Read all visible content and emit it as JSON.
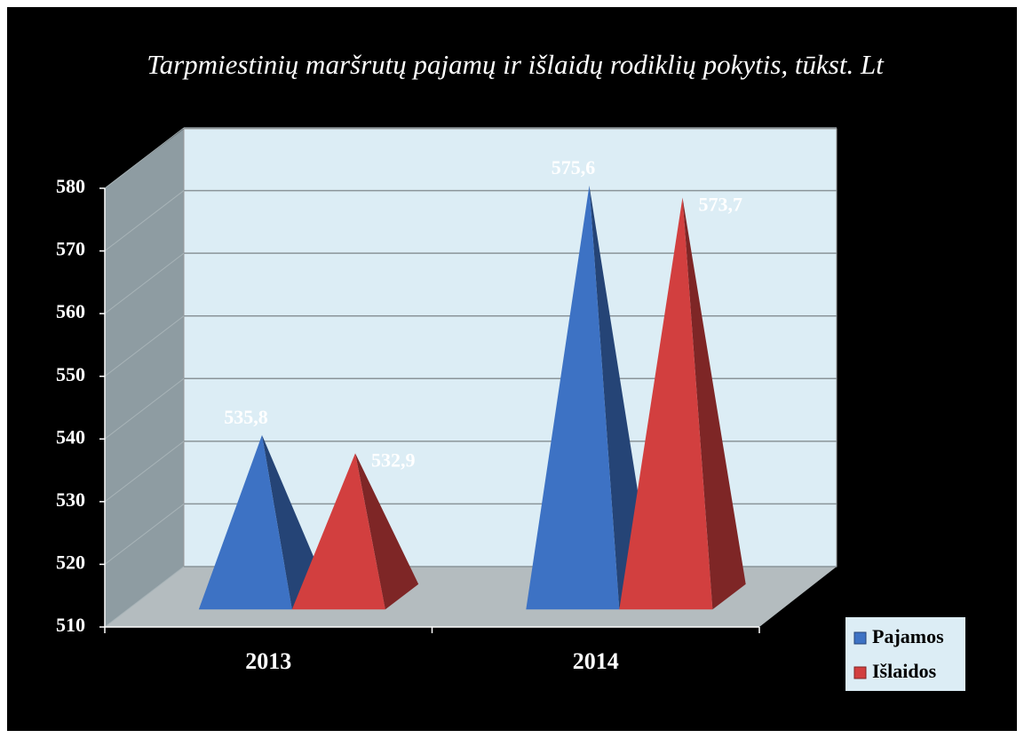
{
  "chart_data": {
    "type": "pyramid3d",
    "title": "Tarpmiestinių maršrutų pajamų ir išlaidų rodiklių pokytis, tūkst. Lt",
    "categories": [
      "2013",
      "2014"
    ],
    "series": [
      {
        "name": "Pajamos",
        "color": "#3d72c4",
        "values": [
          535.8,
          575.6
        ],
        "value_labels": [
          "535,8",
          "575,6"
        ]
      },
      {
        "name": "Išlaidos",
        "color": "#d23f3f",
        "values": [
          532.9,
          573.7
        ],
        "value_labels": [
          "532,9",
          "573,7"
        ]
      }
    ],
    "ylim": [
      510,
      580
    ],
    "yticks": [
      510,
      520,
      530,
      540,
      550,
      560,
      570,
      580
    ],
    "grid": true
  }
}
